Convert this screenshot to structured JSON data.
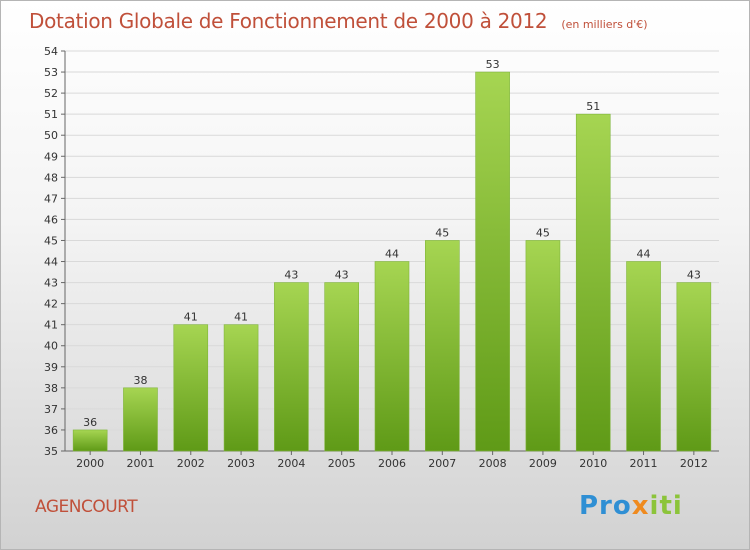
{
  "header": {
    "title": "Dotation Globale de Fonctionnement de 2000 à 2012",
    "unit": "(en milliers d'€)"
  },
  "footer": {
    "commune": "AGENCOURT",
    "logo": {
      "part1": "Pro",
      "part2": "x",
      "part3": "iti"
    }
  },
  "colors": {
    "title": "#c0503a",
    "bar_light": "#a6d552",
    "bar_dark": "#5f9a17",
    "grid": "#d9d9d9"
  },
  "chart_data": {
    "type": "bar",
    "title": "Dotation Globale de Fonctionnement de 2000 à 2012",
    "unit": "(en milliers d'€)",
    "xlabel": "",
    "ylabel": "",
    "categories": [
      "2000",
      "2001",
      "2002",
      "2003",
      "2004",
      "2005",
      "2006",
      "2007",
      "2008",
      "2009",
      "2010",
      "2011",
      "2012"
    ],
    "values": [
      36,
      38,
      41,
      41,
      43,
      43,
      44,
      45,
      53,
      45,
      51,
      44,
      43
    ],
    "ylim": [
      35,
      54
    ],
    "ytick_step": 1,
    "grid": true,
    "legend": "none"
  }
}
